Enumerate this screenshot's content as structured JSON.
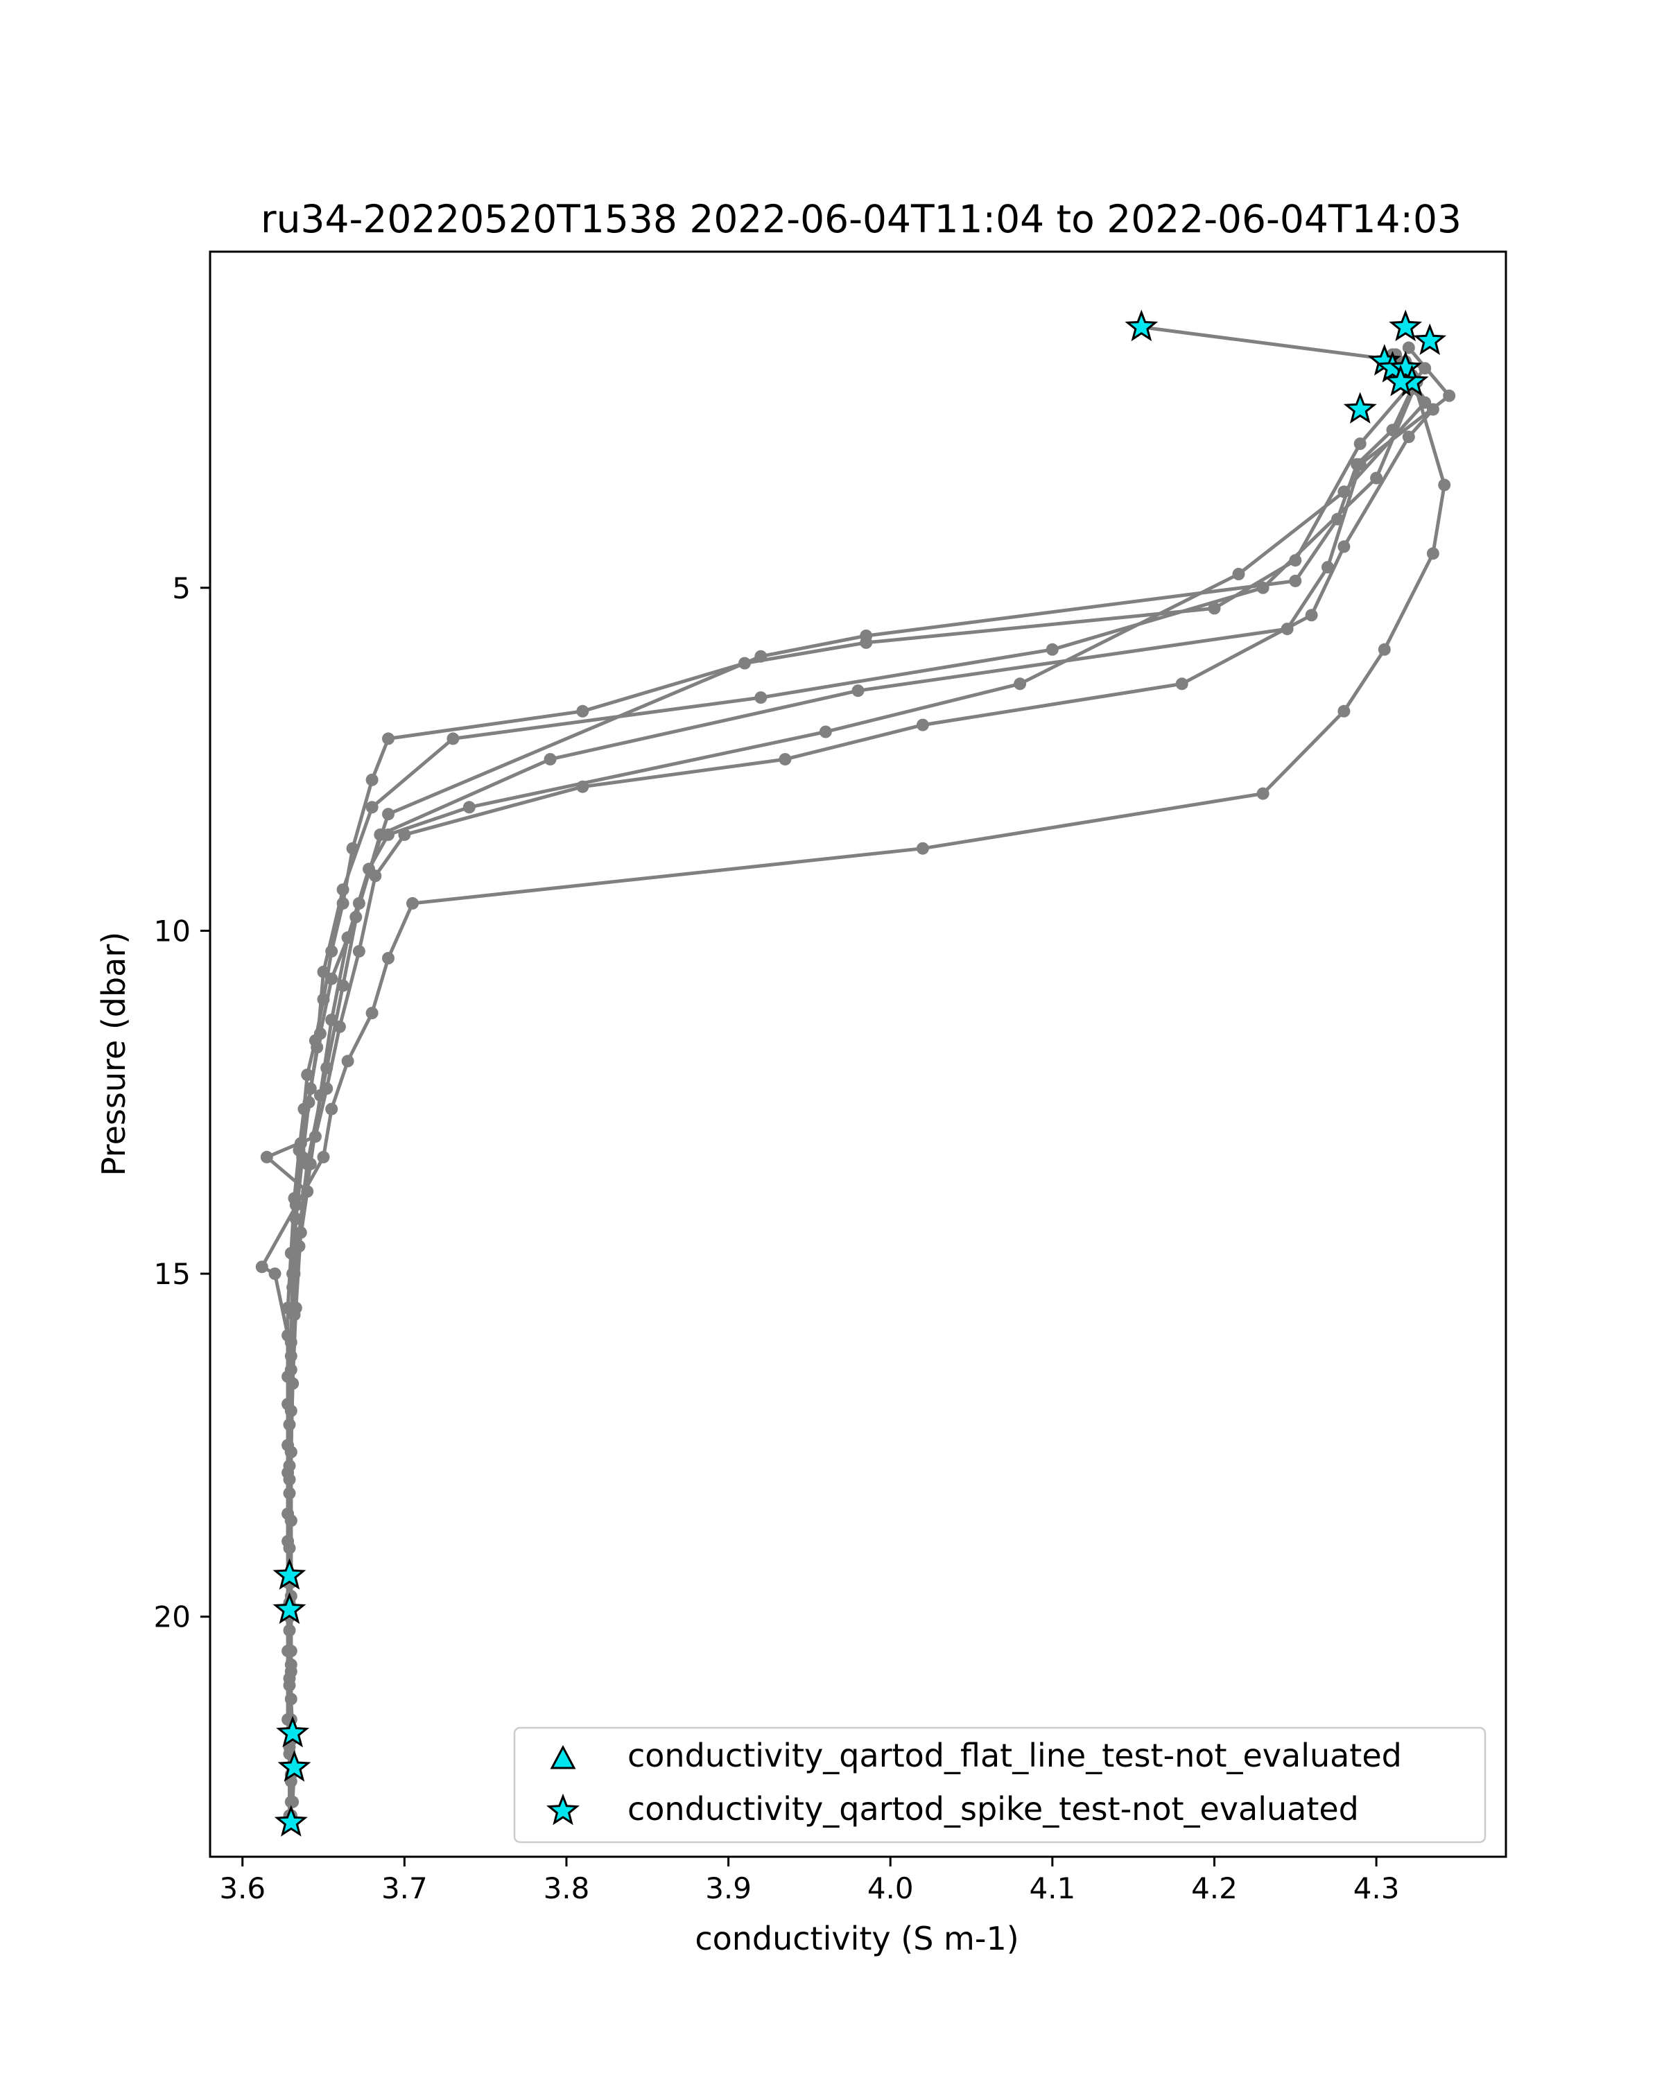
{
  "chart_data": {
    "type": "line",
    "title": "ru34-20220520T1538 2022-06-04T11:04 to 2022-06-04T14:03",
    "xlabel": "conductivity (S m-1)",
    "ylabel": "Pressure (dbar)",
    "xlim": [
      3.58,
      4.38
    ],
    "ylim": [
      23.5,
      0.1
    ],
    "y_inverted": true,
    "grid": false,
    "legend_position": "lower right",
    "xticks": [
      3.6,
      3.7,
      3.8,
      3.9,
      4.0,
      4.1,
      4.2,
      4.3
    ],
    "xtick_labels": [
      "3.6",
      "3.7",
      "3.8",
      "3.9",
      "4.0",
      "4.1",
      "4.2",
      "4.3"
    ],
    "yticks": [
      5,
      10,
      15,
      20
    ],
    "ytick_labels": [
      "5",
      "10",
      "15",
      "20"
    ],
    "colors": {
      "profile": "#808080",
      "marker_fill": "#00e5ee",
      "marker_edge": "#000000"
    },
    "series": [
      {
        "values": [
          [
            4.155,
            1.2
          ],
          [
            4.318,
            1.7
          ],
          [
            4.33,
            1.8
          ],
          [
            4.29,
            2.9
          ],
          [
            4.25,
            4.6
          ],
          [
            4.2,
            5.3
          ],
          [
            3.985,
            5.8
          ],
          [
            3.91,
            6.1
          ],
          [
            3.81,
            6.8
          ],
          [
            3.69,
            7.2
          ],
          [
            3.68,
            7.8
          ],
          [
            3.668,
            8.8
          ],
          [
            3.662,
            9.6
          ],
          [
            3.655,
            10.3
          ],
          [
            3.65,
            11.0
          ],
          [
            3.645,
            11.6
          ],
          [
            3.64,
            12.1
          ],
          [
            3.638,
            12.6
          ],
          [
            3.635,
            13.2
          ],
          [
            3.632,
            13.9
          ],
          [
            3.63,
            14.7
          ],
          [
            3.628,
            15.5
          ],
          [
            3.628,
            16.5
          ],
          [
            3.628,
            17.5
          ],
          [
            3.628,
            18.5
          ],
          [
            3.628,
            19.5
          ],
          [
            3.628,
            20.5
          ],
          [
            3.628,
            21.5
          ],
          [
            3.63,
            22.3
          ],
          [
            3.63,
            22.9
          ]
        ]
      },
      {
        "values": [
          [
            4.32,
            1.5
          ],
          [
            4.345,
            2.2
          ],
          [
            4.29,
            3.2
          ],
          [
            4.27,
            4.7
          ],
          [
            4.245,
            5.6
          ],
          [
            3.98,
            6.5
          ],
          [
            3.79,
            7.5
          ],
          [
            3.685,
            8.6
          ],
          [
            3.67,
            9.8
          ],
          [
            3.655,
            10.7
          ],
          [
            3.648,
            11.5
          ],
          [
            3.642,
            12.3
          ],
          [
            3.636,
            13.1
          ],
          [
            3.633,
            14.0
          ],
          [
            3.631,
            15.0
          ],
          [
            3.63,
            16.0
          ],
          [
            3.63,
            17.0
          ],
          [
            3.629,
            18.0
          ],
          [
            3.629,
            19.0
          ],
          [
            3.629,
            20.0
          ],
          [
            3.629,
            21.0
          ],
          [
            3.629,
            22.0
          ],
          [
            3.629,
            22.9
          ]
        ]
      },
      {
        "values": [
          [
            4.31,
            1.6
          ],
          [
            4.325,
            2.0
          ],
          [
            4.3,
            3.4
          ],
          [
            4.23,
            5.0
          ],
          [
            4.1,
            5.9
          ],
          [
            3.92,
            6.6
          ],
          [
            3.73,
            7.2
          ],
          [
            3.68,
            8.2
          ],
          [
            3.662,
            9.4
          ],
          [
            3.65,
            10.6
          ],
          [
            3.646,
            11.7
          ],
          [
            3.641,
            12.5
          ],
          [
            3.637,
            13.3
          ],
          [
            3.633,
            14.2
          ],
          [
            3.631,
            15.2
          ],
          [
            3.63,
            16.2
          ],
          [
            3.629,
            17.2
          ],
          [
            3.629,
            18.2
          ],
          [
            3.629,
            19.4
          ],
          [
            3.629,
            20.2
          ],
          [
            3.63,
            21.2
          ],
          [
            3.631,
            21.7
          ],
          [
            3.632,
            22.2
          ],
          [
            3.631,
            22.7
          ]
        ]
      },
      {
        "values": [
          [
            4.305,
            1.7
          ],
          [
            4.33,
            2.3
          ],
          [
            4.28,
            3.6
          ],
          [
            4.215,
            4.8
          ],
          [
            4.08,
            6.4
          ],
          [
            3.96,
            7.1
          ],
          [
            3.74,
            8.2
          ],
          [
            3.69,
            8.6
          ],
          [
            3.678,
            9.1
          ],
          [
            3.665,
            10.1
          ],
          [
            3.655,
            11.3
          ],
          [
            3.648,
            12.4
          ],
          [
            3.642,
            13.4
          ],
          [
            3.636,
            14.4
          ],
          [
            3.633,
            15.5
          ],
          [
            3.631,
            16.6
          ],
          [
            3.63,
            17.6
          ],
          [
            3.63,
            18.6
          ],
          [
            3.63,
            19.5
          ],
          [
            3.63,
            20.5
          ],
          [
            3.63,
            21.5
          ],
          [
            3.63,
            22.4
          ]
        ]
      },
      {
        "values": [
          [
            4.315,
            1.8
          ],
          [
            4.335,
            2.4
          ],
          [
            4.32,
            2.8
          ],
          [
            4.28,
            4.4
          ],
          [
            4.26,
            5.4
          ],
          [
            4.18,
            6.4
          ],
          [
            4.02,
            7.0
          ],
          [
            3.935,
            7.5
          ],
          [
            3.81,
            7.9
          ],
          [
            3.7,
            8.6
          ],
          [
            3.682,
            9.2
          ],
          [
            3.672,
            10.3
          ],
          [
            3.66,
            11.4
          ],
          [
            3.652,
            12.3
          ],
          [
            3.645,
            13.0
          ],
          [
            3.615,
            13.3
          ],
          [
            3.64,
            13.8
          ],
          [
            3.635,
            14.6
          ],
          [
            3.632,
            15.6
          ],
          [
            3.631,
            16.6
          ],
          [
            3.63,
            17.6
          ],
          [
            3.63,
            18.6
          ],
          [
            3.63,
            19.7
          ],
          [
            3.63,
            20.7
          ],
          [
            3.63,
            21.7
          ],
          [
            3.63,
            22.7
          ]
        ]
      },
      {
        "values": [
          [
            4.322,
            1.9
          ],
          [
            4.342,
            3.5
          ],
          [
            4.335,
            4.5
          ],
          [
            4.305,
            5.9
          ],
          [
            4.28,
            6.8
          ],
          [
            4.23,
            8.0
          ],
          [
            4.02,
            8.8
          ],
          [
            3.705,
            9.6
          ],
          [
            3.69,
            10.4
          ],
          [
            3.68,
            11.2
          ],
          [
            3.665,
            11.9
          ],
          [
            3.655,
            12.6
          ],
          [
            3.65,
            13.3
          ],
          [
            3.612,
            14.9
          ],
          [
            3.62,
            15.0
          ],
          [
            3.628,
            15.9
          ],
          [
            3.628,
            16.9
          ],
          [
            3.628,
            17.9
          ],
          [
            3.628,
            18.9
          ],
          [
            3.629,
            19.9
          ],
          [
            3.629,
            20.9
          ],
          [
            3.629,
            21.9
          ],
          [
            3.63,
            22.9
          ]
        ]
      },
      {
        "values": [
          [
            4.312,
            1.6
          ],
          [
            4.322,
            2.1
          ],
          [
            4.31,
            2.7
          ],
          [
            4.288,
            3.2
          ],
          [
            4.276,
            4.0
          ],
          [
            4.25,
            4.9
          ],
          [
            3.985,
            5.7
          ],
          [
            3.92,
            6.0
          ],
          [
            3.69,
            8.3
          ],
          [
            3.672,
            9.6
          ],
          [
            3.662,
            10.8
          ],
          [
            3.652,
            12.0
          ],
          [
            3.64,
            13.4
          ],
          [
            3.632,
            15.0
          ],
          [
            3.63,
            16.4
          ],
          [
            3.629,
            17.8
          ],
          [
            3.629,
            19.4
          ],
          [
            3.629,
            19.8
          ],
          [
            3.63,
            20.8
          ],
          [
            3.63,
            21.8
          ],
          [
            3.63,
            22.9
          ]
        ]
      }
    ],
    "flagged_points": [
      {
        "name": "conductivity_qartod_flat_line_test-not_evaluated",
        "marker": "triangle",
        "values": []
      },
      {
        "name": "conductivity_qartod_spike_test-not_evaluated",
        "marker": "star",
        "values": [
          [
            4.155,
            1.2
          ],
          [
            4.318,
            1.2
          ],
          [
            4.333,
            1.4
          ],
          [
            4.305,
            1.7
          ],
          [
            4.31,
            1.8
          ],
          [
            4.318,
            1.8
          ],
          [
            4.322,
            2.0
          ],
          [
            4.315,
            2.0
          ],
          [
            4.29,
            2.4
          ],
          [
            3.629,
            19.4
          ],
          [
            3.629,
            19.9
          ],
          [
            3.631,
            21.7
          ],
          [
            3.632,
            22.2
          ],
          [
            3.63,
            23.0
          ]
        ]
      }
    ]
  }
}
